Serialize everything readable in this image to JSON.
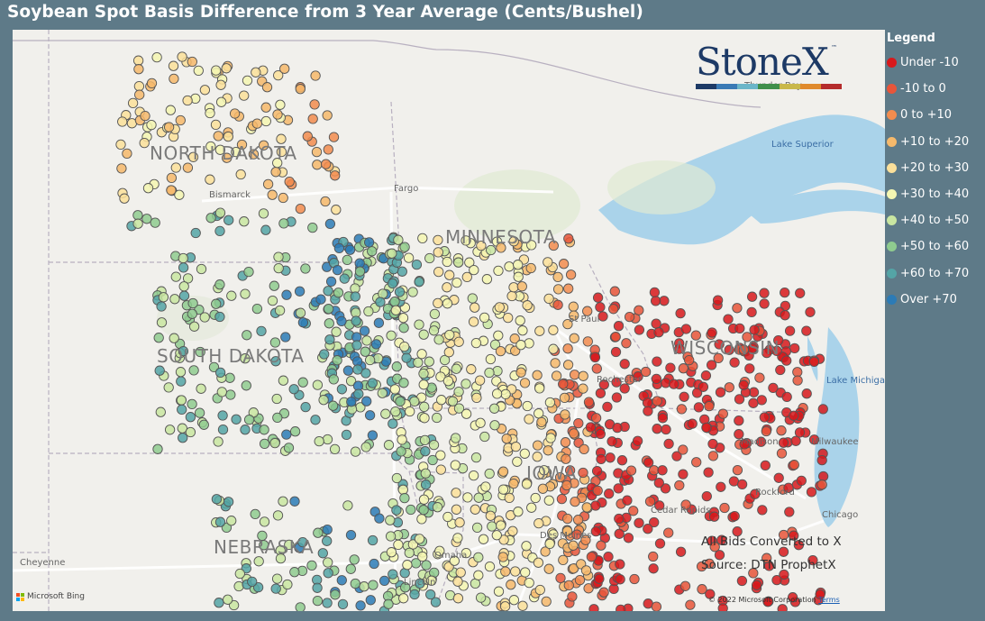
{
  "title": "Soybean Spot Basis Difference from 3 Year Average (Cents/Bushel)",
  "legend": {
    "title": "Legend",
    "items": [
      {
        "label": "Under -10",
        "color": "#d7191c"
      },
      {
        "label": "-10 to 0",
        "color": "#e8553a"
      },
      {
        "label": "0 to +10",
        "color": "#f28c4f"
      },
      {
        "label": "+10 to +20",
        "color": "#f6b96b"
      },
      {
        "label": "+20 to +30",
        "color": "#fbe09a"
      },
      {
        "label": "+30 to +40",
        "color": "#f4f6b2"
      },
      {
        "label": "+40 to +50",
        "color": "#c9e6a1"
      },
      {
        "label": "+50 to +60",
        "color": "#8fcb8f"
      },
      {
        "label": "+60 to +70",
        "color": "#54a4a6"
      },
      {
        "label": "Over +70",
        "color": "#2c7bb6"
      }
    ]
  },
  "map": {
    "states": [
      "NORTH DAKOTA",
      "MINNESOTA",
      "SOUTH DAKOTA",
      "WISCONSIN",
      "IOWA",
      "NEBRASKA"
    ],
    "cities": [
      "Bismarck",
      "Fargo",
      "St Paul",
      "Rochester",
      "Madison",
      "Milwaukee",
      "Rockford",
      "Cedar Rapids",
      "Des Moines",
      "Omaha",
      "Lincoln",
      "Chicago",
      "Cheyenne",
      "Thunder Bay"
    ],
    "water": [
      "Lake Superior",
      "Lake Michigan"
    ],
    "overlay_line1": "All Bids Converted to  X",
    "overlay_line2": "Source: DTN ProphetX",
    "attribution": "Microsoft Bing",
    "copyright": "© 2022 Microsoft Corporation",
    "terms": "Terms"
  },
  "logo": {
    "text": "StoneX",
    "tm": "™",
    "colors": [
      "#1d3a66",
      "#3a7ab5",
      "#6bb6c9",
      "#3f8f4a",
      "#c9b84a",
      "#e08a2c",
      "#b52c2c"
    ]
  }
}
